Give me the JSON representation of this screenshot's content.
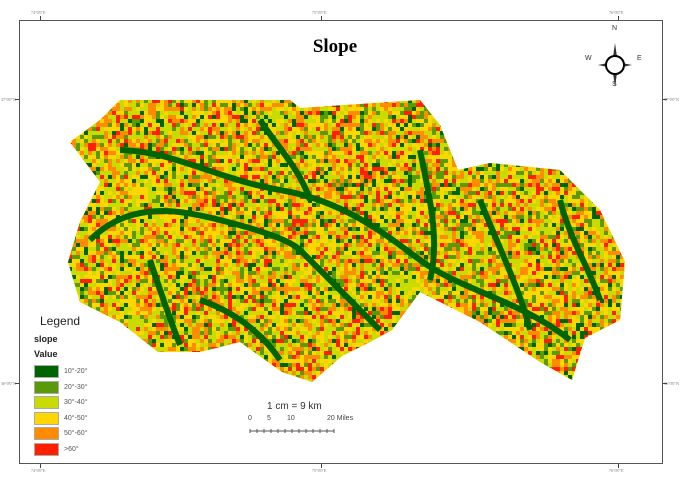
{
  "title": "Slope",
  "coords": {
    "top": [
      "74°0'0\"E",
      "75°0'0\"E",
      "76°0'0\"E"
    ],
    "left": [
      "37°0'0\"N",
      "36°0'0\"N"
    ],
    "right": [
      "37°0'0\"N",
      "36°0'0\"N"
    ],
    "bottom": [
      "74°0'0\"E",
      "75°0'0\"E",
      "76°0'0\"E"
    ]
  },
  "compass": {
    "n": "N",
    "e": "E",
    "s": "S",
    "w": "W"
  },
  "legend": {
    "title": "Legend",
    "layer": "slope",
    "field": "Value",
    "items": [
      {
        "label": "10°-20°",
        "color": "#006400"
      },
      {
        "label": "20°-30°",
        "color": "#5a9a08"
      },
      {
        "label": "30°-40°",
        "color": "#c8dc00"
      },
      {
        "label": "40°-50°",
        "color": "#ffd700"
      },
      {
        "label": "50°-60°",
        "color": "#ff8c00"
      },
      {
        "label": ">60°",
        "color": "#ff2000"
      }
    ]
  },
  "scale": {
    "ratio": "1 cm = 9 km",
    "ticks": [
      "0",
      "5",
      "10",
      "20 Miles"
    ]
  }
}
